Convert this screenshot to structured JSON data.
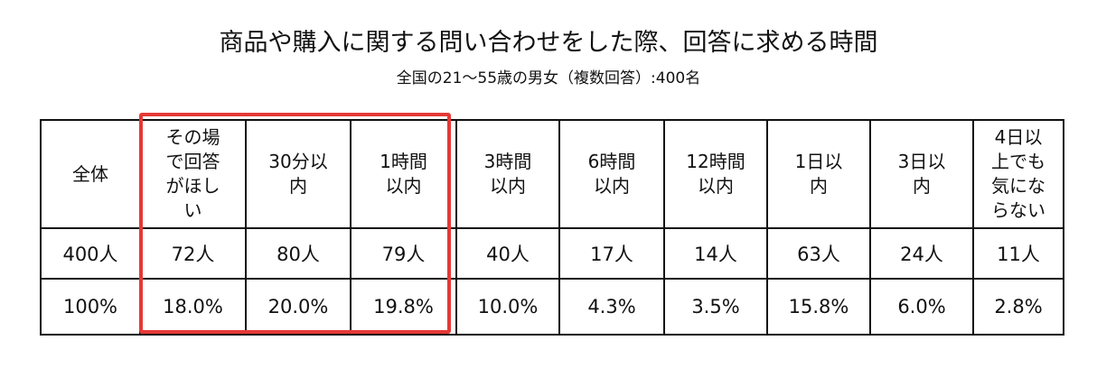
{
  "title": "商品や購入に関する問い合わせをした際、回答に求める時間",
  "subtitle": "全国の21～55歳の男女（複数回答）:400名",
  "highlight_color": "#e53935",
  "columns": [
    {
      "header_lines": [
        "全体"
      ],
      "count": "400人",
      "percent": "100%"
    },
    {
      "header_lines": [
        "その場",
        "で回答",
        "がほし",
        "い"
      ],
      "count": "72人",
      "percent": "18.0%"
    },
    {
      "header_lines": [
        "30分以",
        "内"
      ],
      "count": "80人",
      "percent": "20.0%"
    },
    {
      "header_lines": [
        "1時間",
        "以内"
      ],
      "count": "79人",
      "percent": "19.8%"
    },
    {
      "header_lines": [
        "3時間",
        "以内"
      ],
      "count": "40人",
      "percent": "10.0%"
    },
    {
      "header_lines": [
        "6時間",
        "以内"
      ],
      "count": "17人",
      "percent": "4.3%"
    },
    {
      "header_lines": [
        "12時間",
        "以内"
      ],
      "count": "14人",
      "percent": "3.5%"
    },
    {
      "header_lines": [
        "1日以",
        "内"
      ],
      "count": "63人",
      "percent": "15.8%"
    },
    {
      "header_lines": [
        "3日以",
        "内"
      ],
      "count": "24人",
      "percent": "6.0%"
    },
    {
      "header_lines": [
        "4日以",
        "上でも",
        "気にな",
        "らない"
      ],
      "count": "11人",
      "percent": "2.8%"
    }
  ]
}
